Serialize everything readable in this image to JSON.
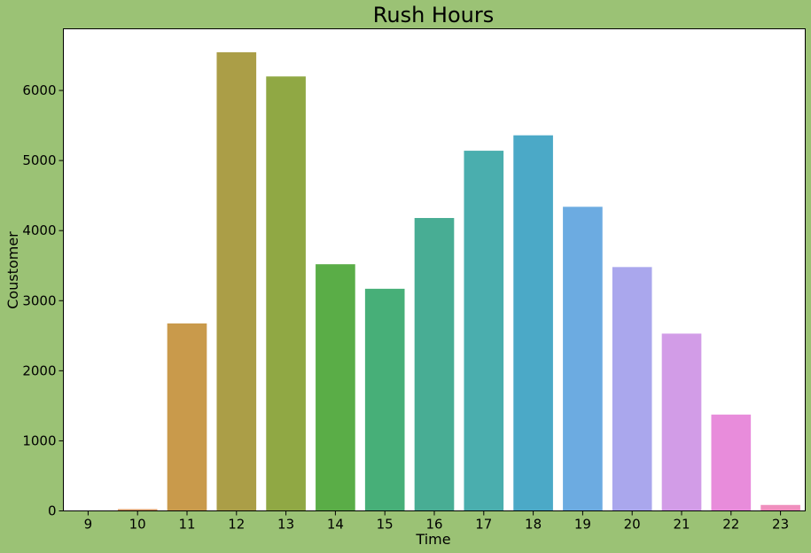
{
  "colors": {
    "figure_background": "#9bc275",
    "plot_background": "#ffffff",
    "axis": "#000000"
  },
  "chart_data": {
    "type": "bar",
    "title": "Rush Hours",
    "xlabel": "Time",
    "ylabel": "Coustomer",
    "categories": [
      "9",
      "10",
      "11",
      "12",
      "13",
      "14",
      "15",
      "16",
      "17",
      "18",
      "19",
      "20",
      "21",
      "22",
      "23"
    ],
    "values": [
      5,
      25,
      2675,
      6545,
      6200,
      3520,
      3170,
      4180,
      5140,
      5360,
      4340,
      3480,
      2530,
      1375,
      85
    ],
    "bar_colors": [
      "#e8796f",
      "#d89661",
      "#c99a4b",
      "#ab9e47",
      "#90a844",
      "#5aad47",
      "#47af78",
      "#48ad94",
      "#4aaeae",
      "#4ba9c7",
      "#6cabe1",
      "#aaa7ed",
      "#d29ce7",
      "#e88cdb",
      "#f08fbe"
    ],
    "ylim": [
      0,
      6880
    ],
    "yticks": [
      0,
      1000,
      2000,
      3000,
      4000,
      5000,
      6000
    ],
    "grid": false,
    "legend": "none"
  }
}
